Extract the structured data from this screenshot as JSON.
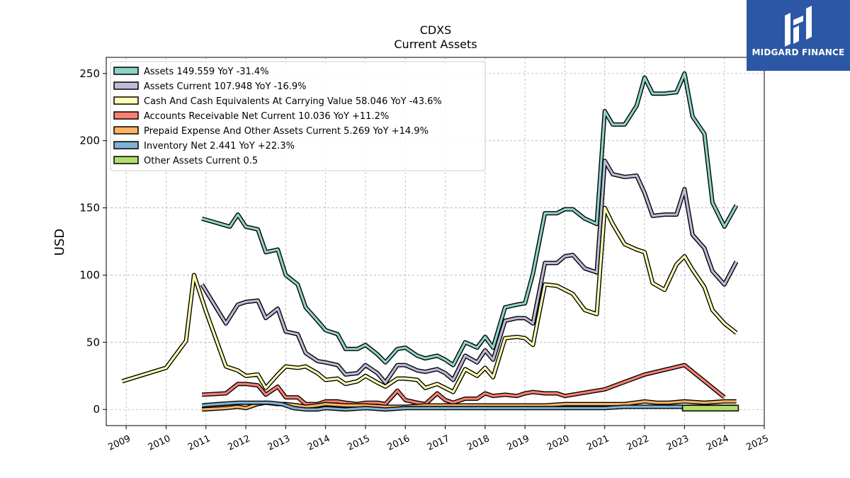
{
  "brand": {
    "name": "MIDGARD FINANCE",
    "bg_color": "#2b57a4"
  },
  "chart_data": {
    "type": "line",
    "title": "CDXS",
    "subtitle": "Current  Assets",
    "xlabel": "",
    "ylabel": "USD",
    "xlim": [
      2008.5,
      2025
    ],
    "ylim": [
      -12,
      262
    ],
    "yticks": [
      0,
      50,
      100,
      150,
      200,
      250
    ],
    "xticks": [
      "2009",
      "2010",
      "2011",
      "2012",
      "2013",
      "2014",
      "2015",
      "2016",
      "2017",
      "2018",
      "2019",
      "2020",
      "2021",
      "2022",
      "2023",
      "2024",
      "2025"
    ],
    "grid": true,
    "legend_position": "top-left",
    "series": [
      {
        "name": "Assets  149.559 YoY -31.4%",
        "color": "#8dd3c7",
        "x": [
          2010.9,
          2011.6,
          2011.8,
          2012.0,
          2012.3,
          2012.5,
          2012.8,
          2013.0,
          2013.3,
          2013.5,
          2013.8,
          2014.0,
          2014.3,
          2014.5,
          2014.8,
          2015.0,
          2015.3,
          2015.5,
          2015.8,
          2016.0,
          2016.3,
          2016.5,
          2016.8,
          2017.0,
          2017.2,
          2017.5,
          2017.8,
          2018.0,
          2018.2,
          2018.5,
          2018.8,
          2019.0,
          2019.2,
          2019.5,
          2019.8,
          2020.0,
          2020.2,
          2020.5,
          2020.8,
          2021.0,
          2021.2,
          2021.5,
          2021.8,
          2022.0,
          2022.2,
          2022.5,
          2022.8,
          2023.0,
          2023.2,
          2023.5,
          2023.7,
          2024.0,
          2024.3
        ],
        "values": [
          142,
          136,
          145,
          136,
          134,
          117,
          119,
          100,
          93,
          76,
          66,
          59,
          56,
          45,
          45,
          48,
          41,
          35,
          45,
          46,
          40,
          38,
          40,
          37,
          33,
          50,
          46,
          54,
          46,
          76,
          78,
          79,
          101,
          146,
          146,
          149,
          149,
          142,
          138,
          222,
          212,
          212,
          226,
          247,
          235,
          235,
          236,
          250,
          218,
          205,
          154,
          136,
          152
        ]
      },
      {
        "name": "Assets Current  107.948 YoY -16.9%",
        "color": "#bebada",
        "x": [
          2010.9,
          2011.5,
          2011.8,
          2012.0,
          2012.3,
          2012.5,
          2012.8,
          2013.0,
          2013.3,
          2013.5,
          2013.8,
          2014.0,
          2014.3,
          2014.5,
          2014.8,
          2015.0,
          2015.3,
          2015.5,
          2015.8,
          2016.0,
          2016.3,
          2016.5,
          2016.8,
          2017.0,
          2017.2,
          2017.5,
          2017.8,
          2018.0,
          2018.2,
          2018.5,
          2018.8,
          2019.0,
          2019.2,
          2019.5,
          2019.8,
          2020.0,
          2020.2,
          2020.5,
          2020.8,
          2021.0,
          2021.2,
          2021.5,
          2021.8,
          2022.0,
          2022.2,
          2022.5,
          2022.8,
          2023.0,
          2023.2,
          2023.5,
          2023.7,
          2024.0,
          2024.3
        ],
        "values": [
          93,
          64,
          78,
          80,
          81,
          68,
          75,
          58,
          56,
          42,
          36,
          35,
          33,
          26,
          27,
          33,
          27,
          20,
          33,
          33,
          29,
          28,
          30,
          27,
          22,
          40,
          35,
          44,
          37,
          66,
          68,
          68,
          64,
          109,
          109,
          114,
          115,
          105,
          102,
          185,
          175,
          173,
          174,
          161,
          144,
          145,
          145,
          164,
          130,
          120,
          103,
          93,
          110
        ]
      },
      {
        "name": "Cash And Cash Equivalents At Carrying Value  58.046 YoY -43.6%",
        "color": "#ffffb3",
        "x": [
          2008.9,
          2010.0,
          2010.5,
          2010.7,
          2011.0,
          2011.5,
          2011.8,
          2012.0,
          2012.3,
          2012.5,
          2012.8,
          2013.0,
          2013.3,
          2013.5,
          2013.8,
          2014.0,
          2014.3,
          2014.5,
          2014.8,
          2015.0,
          2015.3,
          2015.5,
          2015.8,
          2016.0,
          2016.3,
          2016.5,
          2016.8,
          2017.0,
          2017.2,
          2017.5,
          2017.8,
          2018.0,
          2018.2,
          2018.5,
          2018.8,
          2019.0,
          2019.2,
          2019.5,
          2019.8,
          2020.0,
          2020.2,
          2020.5,
          2020.8,
          2021.0,
          2021.2,
          2021.5,
          2021.8,
          2022.0,
          2022.2,
          2022.5,
          2022.8,
          2023.0,
          2023.2,
          2023.5,
          2023.7,
          2024.0,
          2024.3
        ],
        "values": [
          21,
          31,
          51,
          100,
          73,
          32,
          29,
          25,
          26,
          16,
          26,
          32,
          31,
          32,
          27,
          22,
          23,
          19,
          21,
          25,
          20,
          17,
          23,
          23,
          22,
          16,
          19,
          16,
          13,
          30,
          25,
          31,
          24,
          53,
          54,
          53,
          48,
          93,
          92,
          89,
          86,
          74,
          71,
          150,
          138,
          123,
          119,
          117,
          94,
          89,
          108,
          114,
          104,
          91,
          74,
          64,
          57
        ]
      },
      {
        "name": "Accounts Receivable Net Current  10.036 YoY +11.2%",
        "color": "#fb8072",
        "x": [
          2010.9,
          2011.5,
          2011.8,
          2012.0,
          2012.3,
          2012.5,
          2012.8,
          2013.0,
          2013.3,
          2013.5,
          2013.8,
          2014.0,
          2014.3,
          2014.5,
          2014.8,
          2015.0,
          2015.3,
          2015.5,
          2015.8,
          2016.0,
          2016.3,
          2016.5,
          2016.8,
          2017.0,
          2017.2,
          2017.5,
          2017.8,
          2018.0,
          2018.2,
          2018.5,
          2018.8,
          2019.0,
          2019.2,
          2019.5,
          2019.8,
          2020.0,
          2021.0,
          2022.0,
          2023.0,
          2024.0
        ],
        "values": [
          11,
          12,
          19,
          19,
          18,
          11,
          17,
          9,
          9,
          4,
          4,
          6,
          6,
          5,
          4,
          5,
          5,
          4,
          14,
          7,
          5,
          4,
          12,
          7,
          5,
          8,
          8,
          12,
          10,
          11,
          10,
          12,
          13,
          12,
          12,
          10,
          15,
          26,
          33,
          9
        ]
      },
      {
        "name": "Prepaid Expense And Other Assets Current  5.269 YoY +14.9%",
        "color": "#fdb462",
        "x": [
          2010.9,
          2011.5,
          2011.8,
          2012.0,
          2012.3,
          2012.5,
          2012.8,
          2013.0,
          2013.3,
          2013.5,
          2013.8,
          2014.0,
          2014.5,
          2015.0,
          2015.5,
          2016.0,
          2016.5,
          2017.0,
          2017.5,
          2018.0,
          2018.5,
          2019.0,
          2019.5,
          2020.0,
          2020.5,
          2021.0,
          2021.5,
          2022.0,
          2022.3,
          2022.6,
          2023.0,
          2023.5,
          2024.0,
          2024.3
        ],
        "values": [
          0,
          1,
          2,
          1,
          4,
          5,
          4,
          4,
          3,
          2,
          3,
          4,
          3,
          3,
          2,
          2,
          3,
          3,
          3,
          3,
          3,
          3,
          3,
          4,
          4,
          4,
          4,
          6,
          5,
          5,
          6,
          5,
          6,
          6
        ]
      },
      {
        "name": "Inventory Net  2.441 YoY +22.3%",
        "color": "#80b1d3",
        "x": [
          2010.9,
          2011.3,
          2011.8,
          2012.0,
          2012.3,
          2012.6,
          2012.9,
          2013.2,
          2013.5,
          2013.8,
          2014.0,
          2014.5,
          2015.0,
          2015.5,
          2016.0,
          2016.5,
          2017.0,
          2017.5,
          2018.0,
          2018.5,
          2019.0,
          2019.5,
          2020.0,
          2020.5,
          2021.0,
          2021.5,
          2022.0,
          2022.5,
          2023.0,
          2023.5,
          2024.0,
          2024.3
        ],
        "values": [
          3,
          4,
          5,
          5,
          5,
          5,
          4,
          1,
          0,
          0,
          1,
          0,
          1,
          0,
          1,
          1,
          1,
          1,
          1,
          1,
          1,
          1,
          1,
          1,
          1,
          2,
          2,
          2,
          2,
          2,
          2,
          2
        ]
      },
      {
        "name": "Other Assets Current  0.5",
        "color": "#b3de69",
        "type": "bar",
        "x_start": 2022.95,
        "x_end": 2024.35,
        "values": [
          0.5
        ]
      }
    ]
  }
}
